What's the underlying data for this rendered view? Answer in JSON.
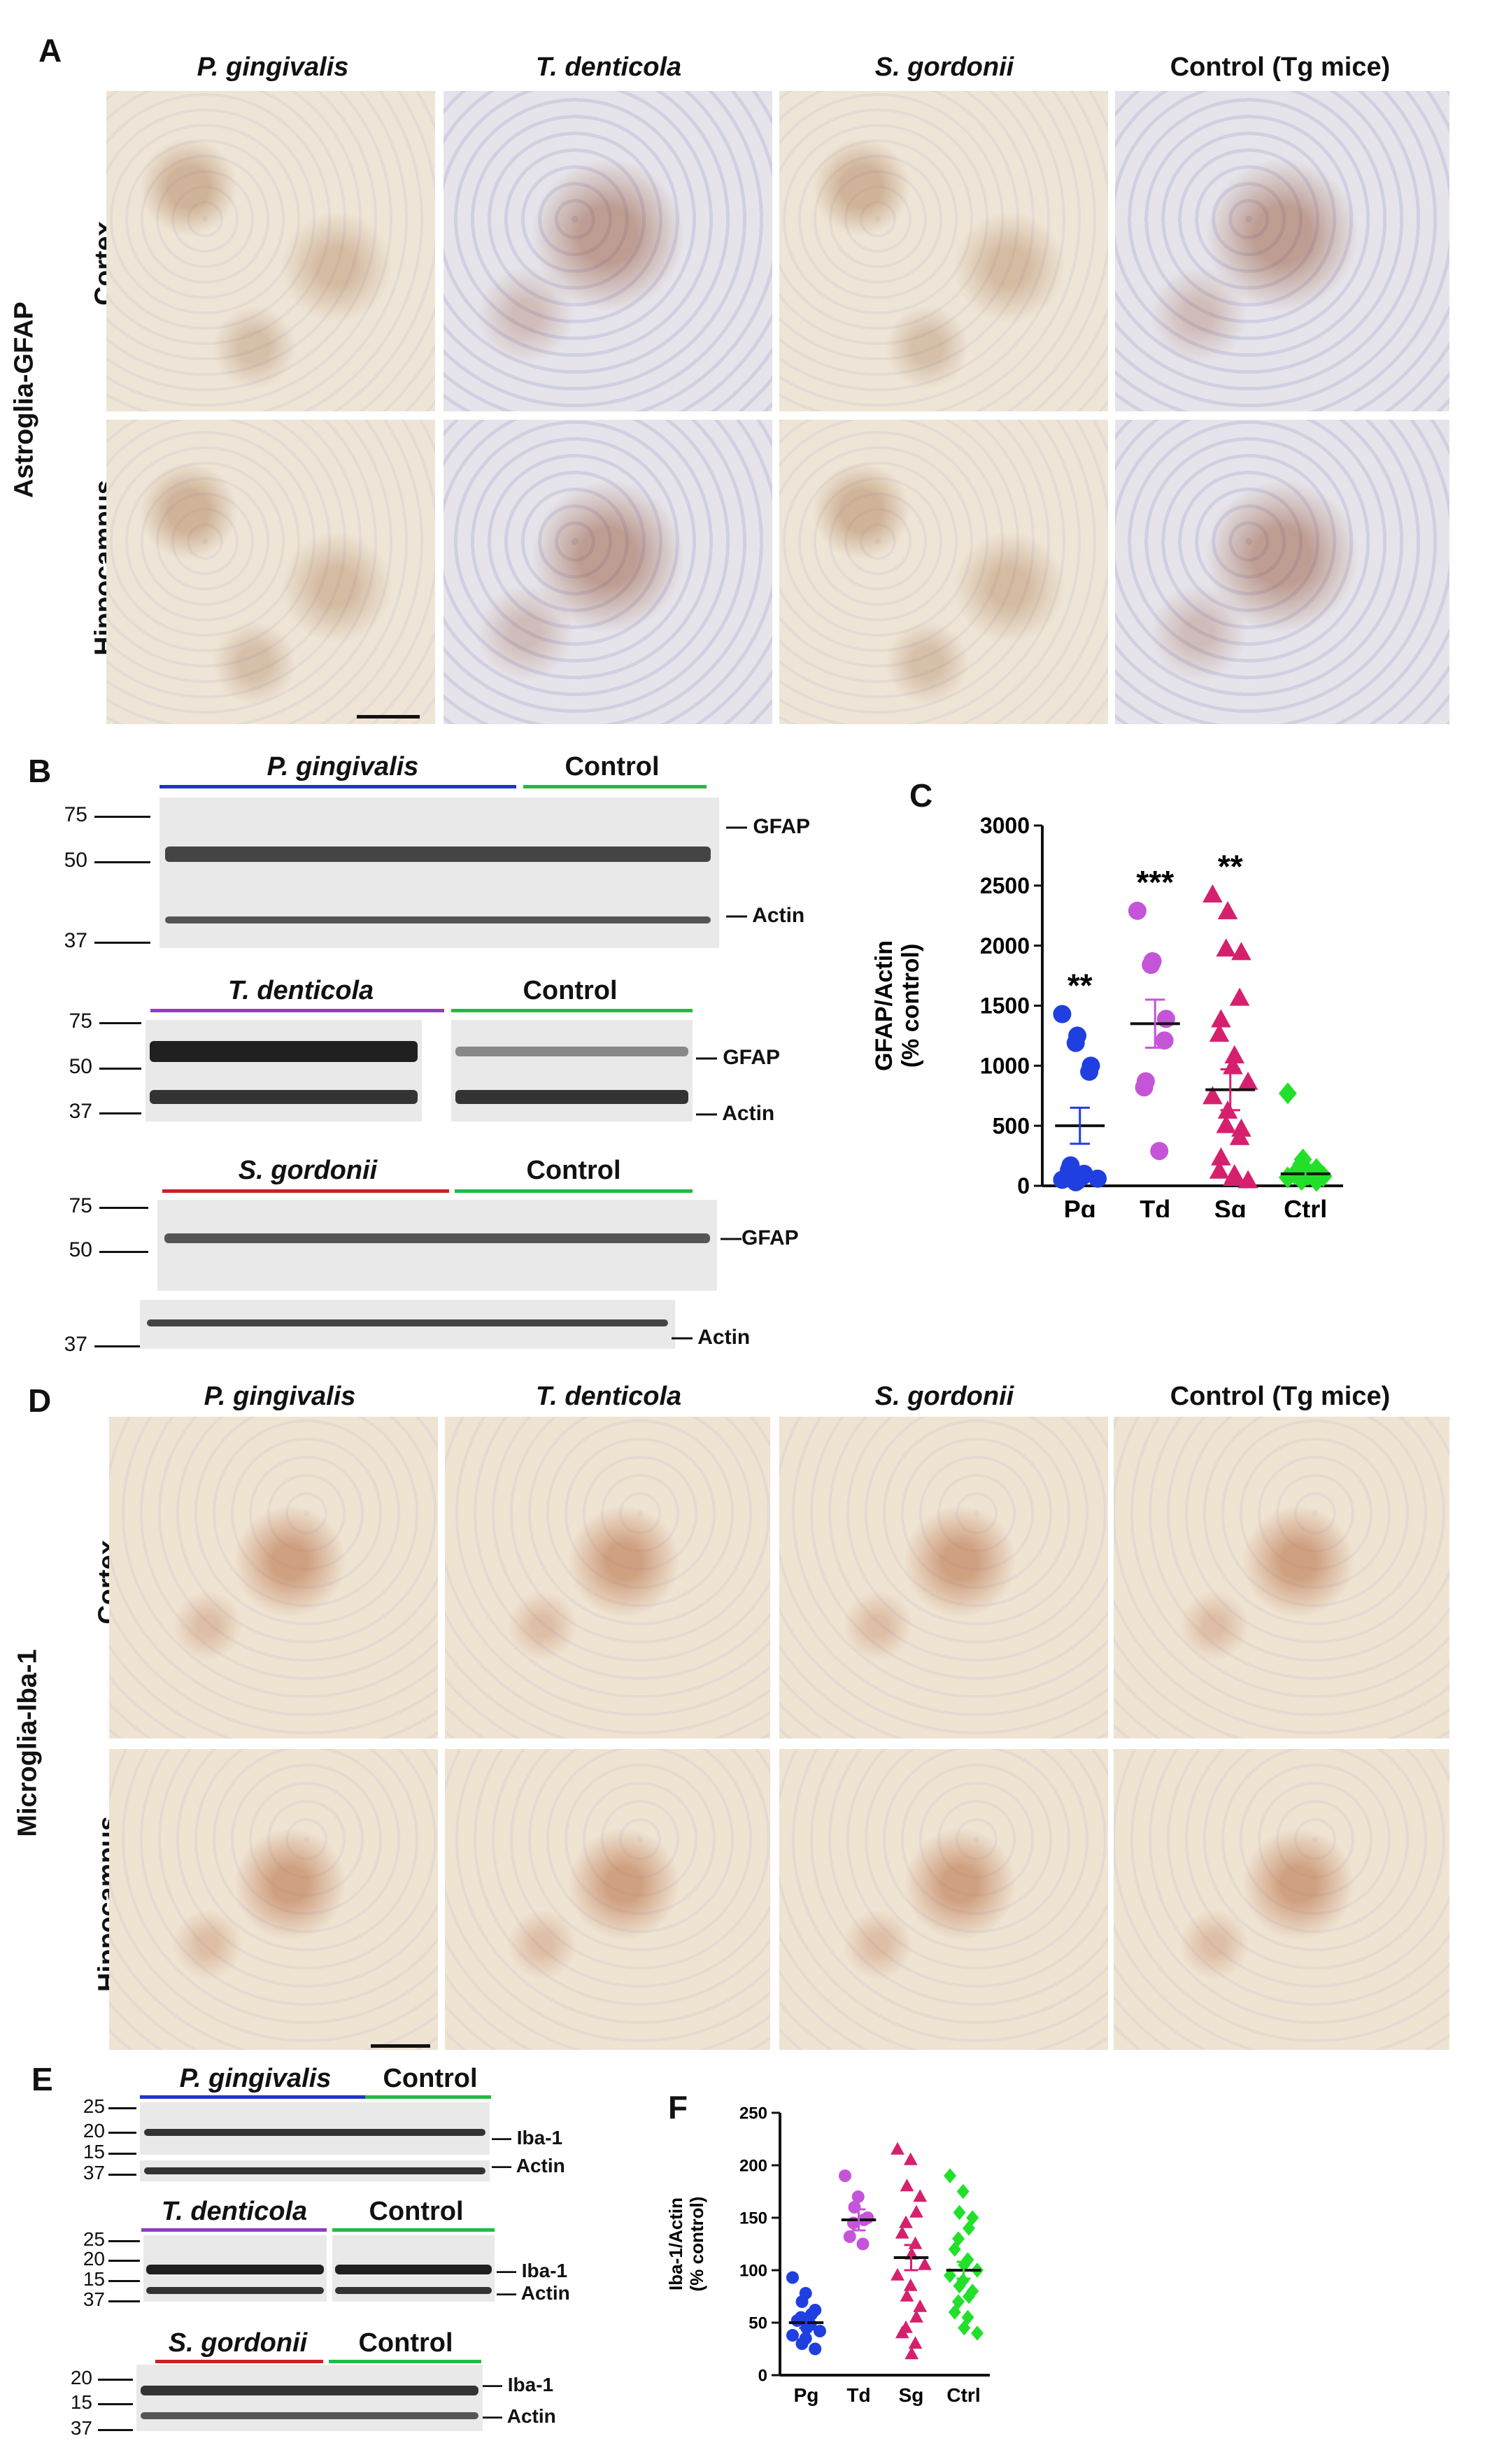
{
  "panels": {
    "A": {
      "letter": "A",
      "columns": [
        "P. gingivalis",
        "T. denticola",
        "S. gordonii",
        "Control (Tg mice)"
      ],
      "row_group": "Astroglia-GFAP",
      "rows": [
        "Cortex",
        "Hippocampus"
      ]
    },
    "B": {
      "letter": "B",
      "blots": [
        {
          "group": "P. gingivalis",
          "control": "Control",
          "band1": "GFAP",
          "band2": "Actin",
          "mw": [
            "75",
            "50",
            "37"
          ]
        },
        {
          "group": "T. denticola",
          "control": "Control",
          "band1": "GFAP",
          "band2": "Actin",
          "mw": [
            "75",
            "50",
            "37"
          ]
        },
        {
          "group": "S. gordonii",
          "control": "Control",
          "band1": "GFAP",
          "band2": "Actin",
          "mw": [
            "75",
            "50",
            "37"
          ]
        }
      ]
    },
    "C": {
      "letter": "C"
    },
    "D": {
      "letter": "D",
      "columns": [
        "P. gingivalis",
        "T. denticola",
        "S. gordonii",
        "Control (Tg mice)"
      ],
      "row_group": "Microglia-Iba-1",
      "rows": [
        "Cortex",
        "Hippocampus"
      ]
    },
    "E": {
      "letter": "E",
      "blots": [
        {
          "group": "P. gingivalis",
          "control": "Control",
          "band1": "Iba-1",
          "band2": "Actin",
          "mw": [
            "25",
            "20",
            "15",
            "37"
          ]
        },
        {
          "group": "T. denticola",
          "control": "Control",
          "band1": "Iba-1",
          "band2": "Actin",
          "mw": [
            "25",
            "20",
            "15",
            "37"
          ]
        },
        {
          "group": "S. gordonii",
          "control": "Control",
          "band1": "Iba-1",
          "band2": "Actin",
          "mw": [
            "20",
            "15",
            "37"
          ]
        }
      ]
    },
    "F": {
      "letter": "F"
    }
  },
  "colors": {
    "Pg": "#1f3fe0",
    "Td": "#c455d8",
    "Sg": "#d6206e",
    "Ctrl": "#22e02a",
    "line_pg": "#2233cc",
    "line_td": "#8e3ec2",
    "line_sg": "#cc2222",
    "line_ctrl": "#22bb44"
  },
  "chart_data": [
    {
      "type": "scatter",
      "panel": "C",
      "ylabel": "GFAP/Actin\n(% control)",
      "ylabel_lines": [
        "GFAP/Actin",
        "(% control)"
      ],
      "categories": [
        "Pg",
        "Td",
        "Sg",
        "Ctrl"
      ],
      "ylim": [
        0,
        3000
      ],
      "yticks": [
        "0",
        "500",
        "1000",
        "1500",
        "2000",
        "2500",
        "3000"
      ],
      "significance": [
        "**",
        "***",
        "**",
        ""
      ],
      "means": [
        500,
        1350,
        800,
        100
      ],
      "sem": [
        150,
        200,
        170,
        30
      ],
      "series": [
        {
          "name": "Pg",
          "marker": "circle",
          "values": [
            1430,
            1250,
            1190,
            1000,
            950,
            170,
            130,
            100,
            80,
            60,
            50,
            40,
            30
          ]
        },
        {
          "name": "Td",
          "marker": "circle",
          "values": [
            2290,
            1870,
            1840,
            1390,
            1210,
            870,
            820,
            290
          ]
        },
        {
          "name": "Sg",
          "marker": "triangle",
          "values": [
            2420,
            2280,
            1970,
            1940,
            1560,
            1380,
            1260,
            1080,
            990,
            860,
            740,
            620,
            500,
            470,
            400,
            230,
            120,
            90,
            60,
            40
          ]
        },
        {
          "name": "Ctrl",
          "marker": "diamond",
          "values": [
            770,
            220,
            180,
            140,
            120,
            110,
            100,
            100,
            90,
            80,
            70,
            60,
            50,
            40
          ]
        }
      ]
    },
    {
      "type": "scatter",
      "panel": "F",
      "ylabel": "Iba-1/Actin\n(% control)",
      "ylabel_lines": [
        "Iba-1/Actin",
        "(% control)"
      ],
      "categories": [
        "Pg",
        "Td",
        "Sg",
        "Ctrl"
      ],
      "ylim": [
        0,
        250
      ],
      "yticks": [
        "0",
        "50",
        "100",
        "150",
        "200",
        "250"
      ],
      "means": [
        50,
        148,
        112,
        100
      ],
      "sem": [
        5,
        10,
        12,
        8
      ],
      "series": [
        {
          "name": "Pg",
          "marker": "circle",
          "values": [
            93,
            78,
            70,
            62,
            58,
            55,
            52,
            48,
            45,
            42,
            38,
            35,
            30,
            25
          ]
        },
        {
          "name": "Td",
          "marker": "circle",
          "values": [
            190,
            170,
            160,
            150,
            148,
            145,
            132,
            125
          ]
        },
        {
          "name": "Sg",
          "marker": "triangle",
          "values": [
            215,
            205,
            180,
            170,
            155,
            145,
            135,
            125,
            115,
            105,
            95,
            85,
            75,
            65,
            55,
            45,
            40,
            30,
            20
          ]
        },
        {
          "name": "Ctrl",
          "marker": "diamond",
          "values": [
            190,
            175,
            155,
            150,
            140,
            130,
            120,
            110,
            105,
            100,
            95,
            90,
            85,
            80,
            75,
            70,
            60,
            55,
            45,
            40
          ]
        }
      ]
    }
  ]
}
